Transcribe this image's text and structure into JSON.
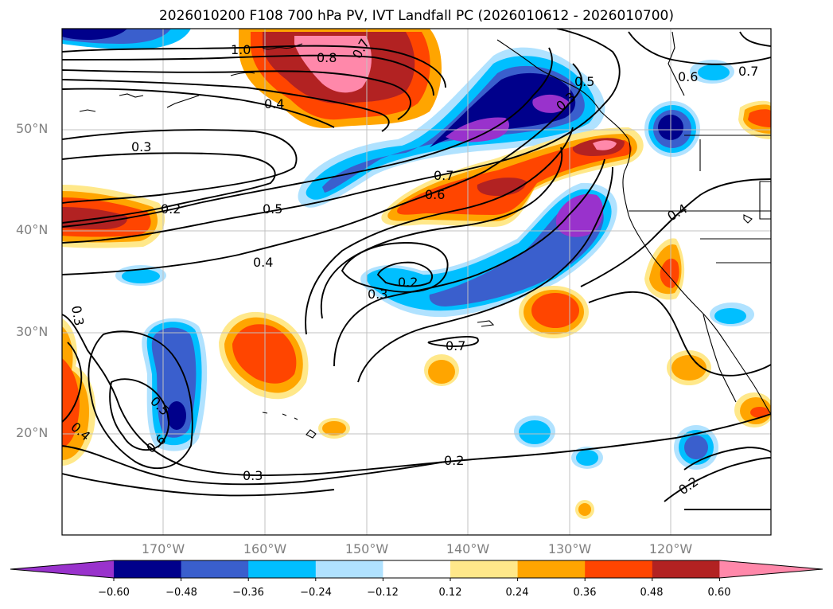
{
  "title": "2026010200 F108 700 hPa PV, IVT Landfall PC (2026010612 - 2026010700)",
  "lat_labels": [
    "50°N",
    "40°N",
    "30°N",
    "20°N"
  ],
  "lon_labels": [
    "170°W",
    "160°W",
    "150°W",
    "140°W",
    "130°W",
    "120°W"
  ],
  "colorbar": {
    "ticks": [
      "−0.60",
      "−0.48",
      "−0.36",
      "−0.24",
      "−0.12",
      "0.12",
      "0.24",
      "0.36",
      "0.48",
      "0.60"
    ],
    "colors": [
      "#9932cc",
      "#00008b",
      "#3a5fcd",
      "#00bfff",
      "#b0e2ff",
      "#ffffff",
      "#ffe88a",
      "#ffa500",
      "#ff4500",
      "#b22222",
      "#ff88aa"
    ]
  },
  "contour_labels": [
    {
      "text": "1.0"
    },
    {
      "text": "0.7"
    },
    {
      "text": "0.8"
    },
    {
      "text": "0.4"
    },
    {
      "text": "0.3"
    },
    {
      "text": "0.2"
    },
    {
      "text": "0.5"
    },
    {
      "text": "0.4"
    },
    {
      "text": "0.3"
    },
    {
      "text": "0.2"
    },
    {
      "text": "0.3"
    },
    {
      "text": "0.7"
    },
    {
      "text": "0.6"
    },
    {
      "text": "0.5"
    },
    {
      "text": "0.7"
    },
    {
      "text": "0.6"
    },
    {
      "text": "0.7"
    },
    {
      "text": "0.4"
    },
    {
      "text": "0.3"
    },
    {
      "text": "0.4"
    },
    {
      "text": "0.5"
    },
    {
      "text": "0.6"
    },
    {
      "text": "0.3"
    },
    {
      "text": "0.2"
    },
    {
      "text": "0.2"
    }
  ]
}
